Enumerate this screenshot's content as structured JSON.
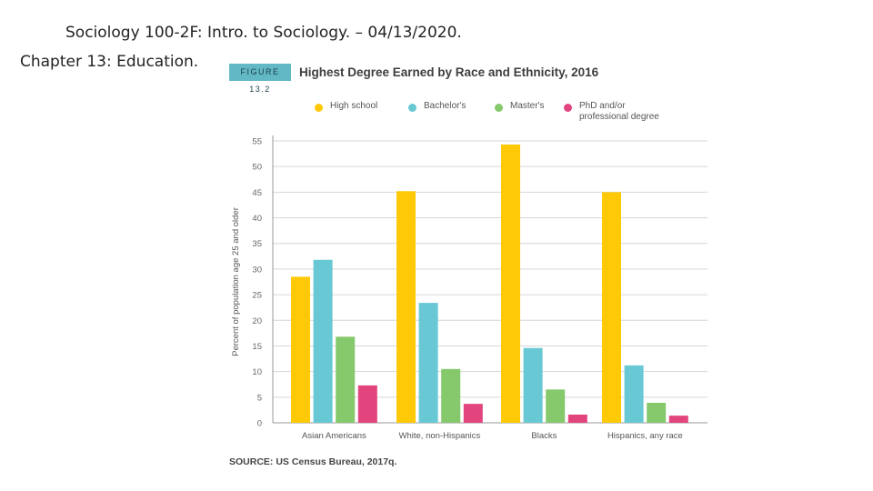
{
  "slide": {
    "title": "Sociology 100-2F: Intro. to Sociology. – 04/13/2020.",
    "subtitle": "Chapter 13: Education."
  },
  "figure": {
    "tag": "FIGURE 13.2",
    "title": "Highest Degree Earned by Race and Ethnicity, 2016",
    "source": "SOURCE: US Census Bureau, 2017q."
  },
  "colors": {
    "high_school": "#ffc907",
    "bachelors": "#68c8d4",
    "masters": "#86c96d",
    "phd": "#e2457e",
    "tag_bg": "#63b8c6"
  },
  "chart_data": {
    "type": "bar",
    "title": "Highest Degree Earned by Race and Ethnicity, 2016",
    "xlabel": "",
    "ylabel": "Percent of population age 25 and older",
    "ylim": [
      0,
      55
    ],
    "yticks": [
      0,
      5,
      10,
      15,
      20,
      25,
      30,
      35,
      40,
      45,
      50,
      55
    ],
    "grid": true,
    "legend_position": "top",
    "categories": [
      "Asian Americans",
      "White, non-Hispanics",
      "Blacks",
      "Hispanics, any race"
    ],
    "series": [
      {
        "name": "High school",
        "color": "#ffc907",
        "values": [
          28.5,
          45.2,
          54.3,
          45.0
        ]
      },
      {
        "name": "Bachelor's",
        "color": "#68c8d4",
        "values": [
          31.8,
          23.4,
          14.6,
          11.2
        ]
      },
      {
        "name": "Master's",
        "color": "#86c96d",
        "values": [
          16.8,
          10.5,
          6.5,
          3.9
        ]
      },
      {
        "name": "PhD and/or professional degree",
        "color": "#e2457e",
        "values": [
          7.3,
          3.7,
          1.6,
          1.4
        ]
      }
    ]
  }
}
